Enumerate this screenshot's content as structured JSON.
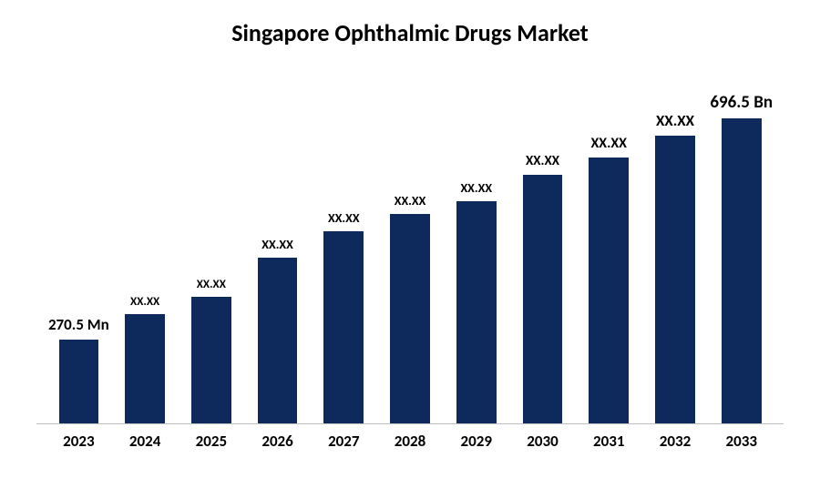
{
  "chart": {
    "type": "bar",
    "title": "Singapore Ophthalmic Drugs Market",
    "title_fontsize": 26,
    "title_fontweight": 700,
    "title_color": "#000000",
    "background_color": "#ffffff",
    "axis_line_color": "#bfbfbf",
    "bar_color": "#0e2a5c",
    "bar_width_pct": 60,
    "x_label_fontsize": 17,
    "x_label_fontweight": 700,
    "x_label_color": "#000000",
    "value_label_color": "#000000",
    "ylim": [
      0,
      400
    ],
    "categories": [
      "2023",
      "2024",
      "2025",
      "2026",
      "2027",
      "2028",
      "2029",
      "2030",
      "2031",
      "2032",
      "2033"
    ],
    "values": [
      96,
      125,
      145,
      190,
      220,
      240,
      255,
      285,
      305,
      330,
      350
    ],
    "value_labels": [
      "270.5 Mn",
      "XX.XX",
      "XX.XX",
      "XX.XX",
      "XX.XX",
      "XX.XX",
      "XX.XX",
      "XX.XX",
      "XX.XX",
      "XX.XX",
      "696.5 Bn"
    ],
    "value_label_fontsizes": [
      17,
      13,
      13,
      14,
      14,
      14,
      14,
      15,
      16,
      17,
      19
    ]
  }
}
